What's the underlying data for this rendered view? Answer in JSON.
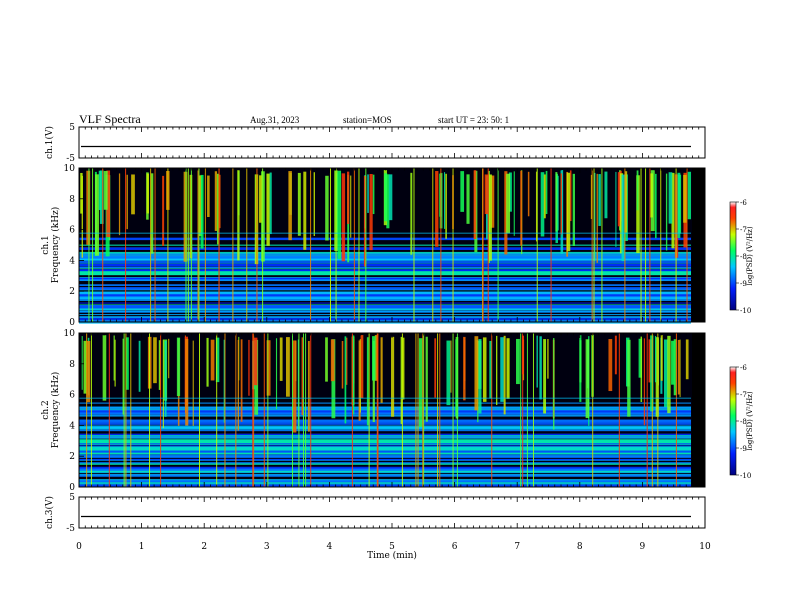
{
  "header": {
    "title": "VLF Spectra",
    "date": "Aug.31, 2023",
    "station": "station=MOS",
    "start": "start  UT =   23: 50: 1"
  },
  "chart_data": [
    {
      "type": "line",
      "panel": "ch.1 waveform",
      "ylabel": "ch.1(V)",
      "ylim": [
        -5,
        5
      ],
      "yticks": [
        "5",
        "-5"
      ],
      "series": [
        {
          "values": "flat trace near 0 V across 0-10 min"
        }
      ]
    },
    {
      "type": "heatmap",
      "panel": "ch.1 spectrogram",
      "ylabel": "ch.1 Frequency (kHz)",
      "ylim": [
        0,
        10
      ],
      "yticks": [
        "0",
        "2",
        "4",
        "6",
        "8",
        "10"
      ],
      "colorbar": {
        "label": "log(PSD) (V²/Hz)",
        "range": [
          -10,
          -6
        ],
        "ticks": [
          "-6",
          "-7",
          "-8",
          "-9",
          "-10"
        ]
      }
    },
    {
      "type": "heatmap",
      "panel": "ch.2 spectrogram",
      "ylabel": "ch.2 Frequency (kHz)",
      "ylim": [
        0,
        10
      ],
      "yticks": [
        "0",
        "2",
        "4",
        "6",
        "8",
        "10"
      ],
      "colorbar": {
        "label": "log(PSD) (V²/Hz)",
        "range": [
          -10,
          -6
        ],
        "ticks": [
          "-6",
          "-7",
          "-8",
          "-9",
          "-10"
        ]
      }
    },
    {
      "type": "line",
      "panel": "ch.3 waveform",
      "ylabel": "ch.3(V)",
      "ylim": [
        -5,
        5
      ],
      "yticks": [
        "5",
        "-5"
      ],
      "series": [
        {
          "values": "flat trace near 0 V across 0-10 min"
        }
      ]
    }
  ],
  "axes": {
    "xlabel": "Time  (min)",
    "xlim": [
      0,
      10
    ],
    "xticks": [
      "0",
      "1",
      "2",
      "3",
      "4",
      "5",
      "6",
      "7",
      "8",
      "9",
      "10"
    ]
  },
  "labels": {
    "ch1_wave": "ch.1(V)",
    "ch1_spec": "ch.1",
    "ch2_spec": "ch.2",
    "ch3_wave": "ch.3(V)",
    "freq": "Frequency (kHz)",
    "colorbar": "log(PSD) (V²/Hz)"
  },
  "colors": {
    "background": "#000000",
    "colormap": [
      "#0000a0",
      "#0030ff",
      "#00c8ff",
      "#00ff80",
      "#c8ff00",
      "#ff8000",
      "#ff0000",
      "#ffffff"
    ]
  }
}
